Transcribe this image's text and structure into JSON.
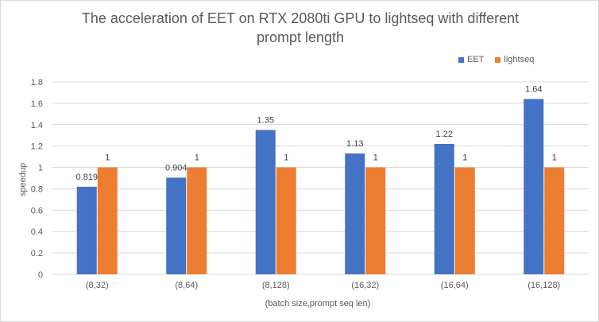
{
  "chart_data": {
    "type": "bar",
    "title": "The acceleration of EET on RTX 2080ti GPU to lightseq with different prompt length",
    "xlabel": "(batch size,prompt seq len)",
    "ylabel": "speedup",
    "categories": [
      "(8,32)",
      "(8,64)",
      "(8,128)",
      "(16,32)",
      "(16,64)",
      "(16,128)"
    ],
    "series": [
      {
        "name": "EET",
        "values": [
          0.819,
          0.904,
          1.35,
          1.13,
          1.22,
          1.64
        ],
        "labels": [
          "0.819",
          "0.904",
          "1.35",
          "1.13",
          "1.22",
          "1.64"
        ],
        "color": "#4472C4"
      },
      {
        "name": "lightseq",
        "values": [
          1,
          1,
          1,
          1,
          1,
          1
        ],
        "labels": [
          "1",
          "1",
          "1",
          "1",
          "1",
          "1"
        ],
        "color": "#ED7D31"
      }
    ],
    "ylim": [
      0,
      1.8
    ],
    "yticks": [
      "0",
      "0.2",
      "0.4",
      "0.6",
      "0.8",
      "1",
      "1.2",
      "1.4",
      "1.6",
      "1.8"
    ],
    "grid": true,
    "legend_position": "top-right"
  }
}
